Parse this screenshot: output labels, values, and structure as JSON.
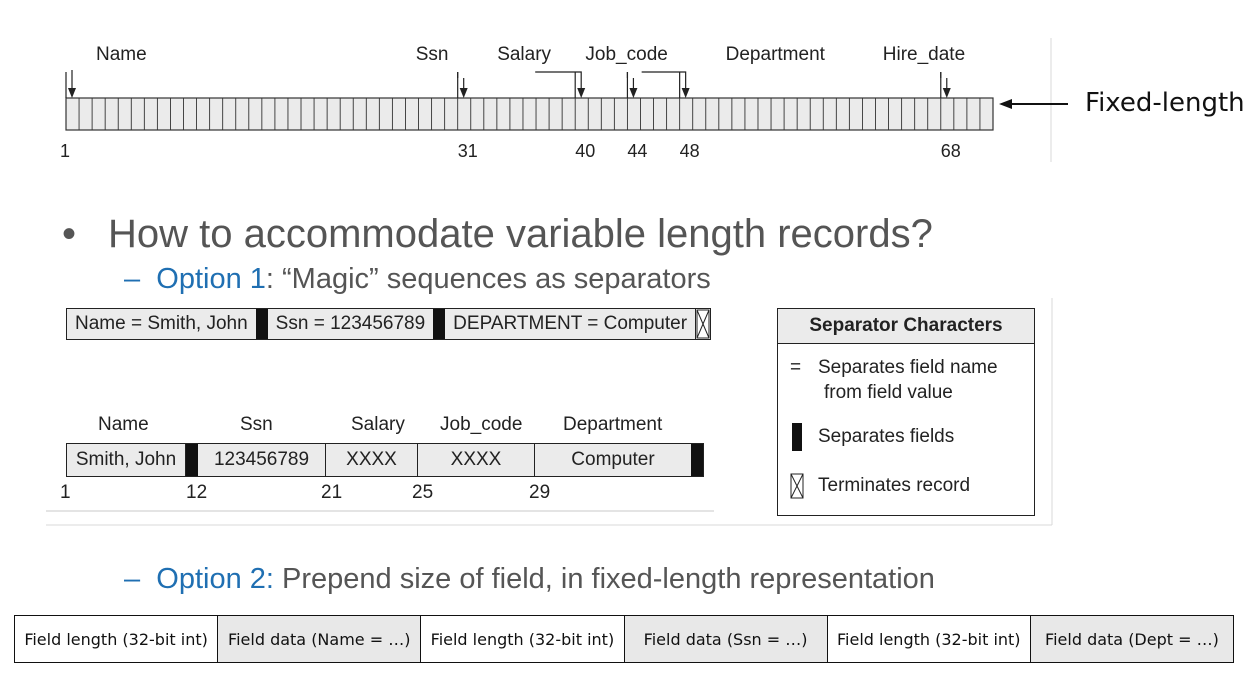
{
  "fixed_record": {
    "label": "Fixed-length",
    "fields": [
      {
        "name": "Name",
        "start": 1
      },
      {
        "name": "Ssn",
        "start": 31
      },
      {
        "name": "Salary",
        "start": 40
      },
      {
        "name": "Job_code",
        "start": 44
      },
      {
        "name": "Department",
        "start": 48
      },
      {
        "name": "Hire_date",
        "start": 68
      }
    ],
    "positions": [
      "1",
      "31",
      "40",
      "44",
      "48",
      "68"
    ],
    "total_cells": 71
  },
  "bullet": {
    "symbol": "•",
    "text": "How to accommodate variable length records?"
  },
  "option1": {
    "dash": "–",
    "label": "Option 1",
    "text": ": “Magic” sequences as separators"
  },
  "separator_record": {
    "cells": [
      "Name = Smith, John",
      "Ssn = 123456789",
      "DEPARTMENT = Computer"
    ]
  },
  "delimited_record": {
    "headers": [
      "Name",
      "Ssn",
      "Salary",
      "Job_code",
      "Department"
    ],
    "values": [
      "Smith, John",
      "123456789",
      "XXXX",
      "XXXX",
      "Computer"
    ],
    "positions": [
      "1",
      "12",
      "21",
      "25",
      "29"
    ]
  },
  "legend": {
    "title": "Separator Characters",
    "rows": [
      {
        "symbol": "=",
        "line1": "Separates field name",
        "line2": "from field value"
      },
      {
        "symbol": "bar-icon",
        "line1": "Separates fields"
      },
      {
        "symbol": "terminator-icon",
        "line1": "Terminates record"
      }
    ]
  },
  "option2": {
    "dash": "–",
    "label": "Option 2:",
    "text": " Prepend size of field, in fixed-length representation"
  },
  "option2_table": {
    "cells": [
      "Field length (32-bit int)",
      "Field data (Name = …)",
      "Field length (32-bit int)",
      "Field data (Ssn = …)",
      "Field length (32-bit int)",
      "Field data (Dept = …)"
    ]
  }
}
